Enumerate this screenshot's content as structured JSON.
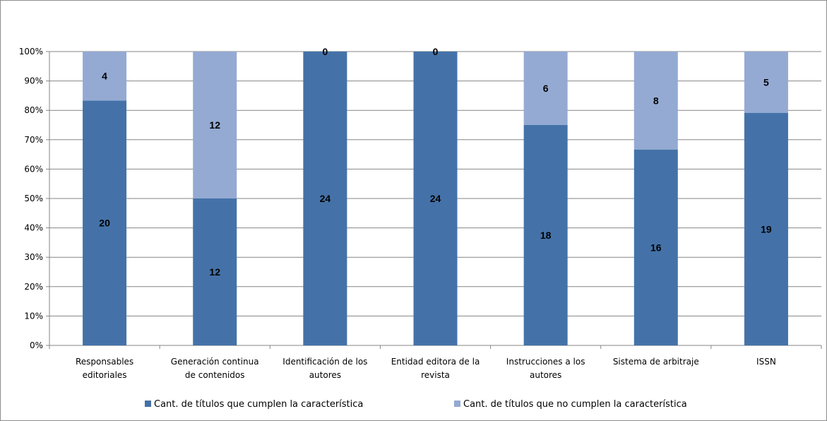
{
  "chart_data": {
    "type": "bar",
    "stacked": true,
    "percent": true,
    "categories": [
      [
        "Responsables",
        "editoriales"
      ],
      [
        "Generación continua",
        "de contenidos"
      ],
      [
        "Identificación de los",
        "autores"
      ],
      [
        "Entidad editora de la",
        "revista"
      ],
      [
        "Instrucciones a los",
        "autores"
      ],
      [
        "Sistema de arbitraje"
      ],
      [
        "ISSN"
      ]
    ],
    "series": [
      {
        "name": "Cant. de títulos que cumplen la característica",
        "color": "#4472a8",
        "values": [
          20,
          12,
          24,
          24,
          18,
          16,
          19
        ]
      },
      {
        "name": "Cant. de títulos que no cumplen la característica",
        "color": "#94aad3",
        "values": [
          4,
          12,
          0,
          0,
          6,
          8,
          5
        ]
      }
    ],
    "yticks": [
      "0%",
      "10%",
      "20%",
      "30%",
      "40%",
      "50%",
      "60%",
      "70%",
      "80%",
      "90%",
      "100%"
    ],
    "ylim": [
      0,
      100
    ],
    "grid": true,
    "legend": "bottom"
  }
}
